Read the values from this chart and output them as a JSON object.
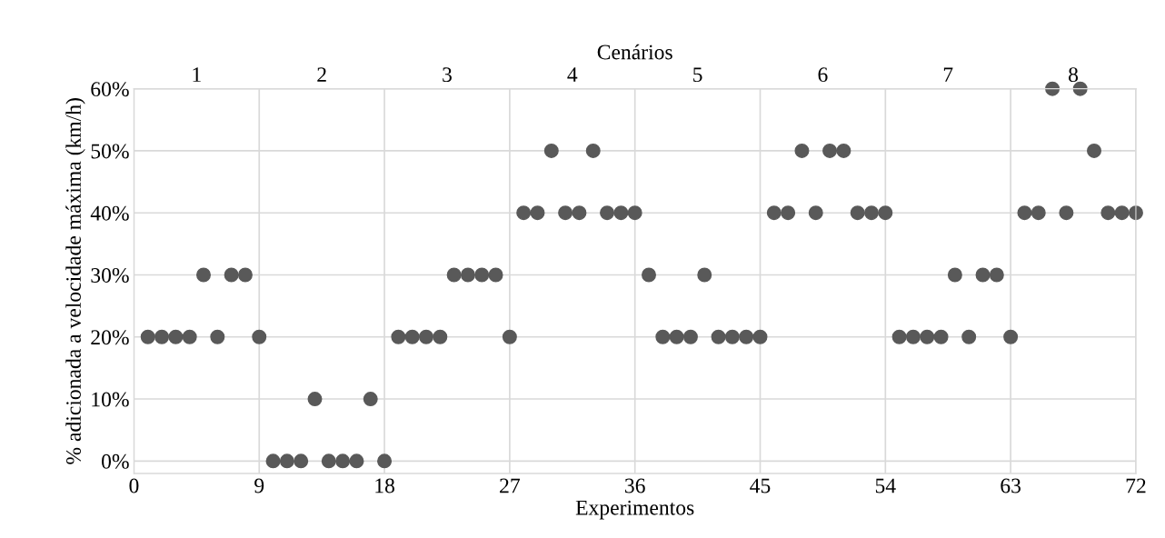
{
  "chart_data": {
    "type": "scatter",
    "xlabel": "Experimentos",
    "ylabel": "% adicionada a velocidade máxima (km/h)",
    "x2label": "Cenários",
    "x": [
      1,
      2,
      3,
      4,
      5,
      6,
      7,
      8,
      9,
      10,
      11,
      12,
      13,
      14,
      15,
      16,
      17,
      18,
      19,
      20,
      21,
      22,
      23,
      24,
      25,
      26,
      27,
      28,
      29,
      30,
      31,
      32,
      33,
      34,
      35,
      36,
      37,
      38,
      39,
      40,
      41,
      42,
      43,
      44,
      45,
      46,
      47,
      48,
      49,
      50,
      51,
      52,
      53,
      54,
      55,
      56,
      57,
      58,
      59,
      60,
      61,
      62,
      63,
      64,
      65,
      66,
      67,
      68,
      69,
      70,
      71,
      72
    ],
    "series": [
      {
        "color": "#595959",
        "values": [
          20,
          20,
          20,
          20,
          30,
          20,
          30,
          30,
          20,
          0,
          0,
          0,
          10,
          0,
          0,
          0,
          10,
          0,
          20,
          20,
          20,
          20,
          30,
          30,
          30,
          30,
          20,
          40,
          40,
          50,
          40,
          40,
          50,
          40,
          40,
          40,
          30,
          20,
          20,
          20,
          30,
          20,
          20,
          20,
          20,
          40,
          40,
          50,
          40,
          50,
          50,
          40,
          40,
          40,
          20,
          20,
          20,
          20,
          30,
          20,
          30,
          30,
          20,
          40,
          40,
          60,
          40,
          60,
          50,
          40,
          40,
          40
        ]
      }
    ],
    "xlim": [
      0,
      72
    ],
    "xticks": [
      0,
      9,
      18,
      27,
      36,
      45,
      54,
      63,
      72
    ],
    "x2lim": [
      0.5,
      8.5
    ],
    "x2ticks": [
      1,
      2,
      3,
      4,
      5,
      6,
      7,
      8
    ],
    "ylim": [
      -2,
      60
    ],
    "yticks": [
      {
        "value": 0,
        "label": "0%"
      },
      {
        "value": 10,
        "label": "10%"
      },
      {
        "value": 20,
        "label": "20%"
      },
      {
        "value": 30,
        "label": "30%"
      },
      {
        "value": 40,
        "label": "40%"
      },
      {
        "value": 50,
        "label": "50%"
      },
      {
        "value": 60,
        "label": "60%"
      }
    ],
    "grid": true,
    "marker": "circle",
    "legend": false
  }
}
